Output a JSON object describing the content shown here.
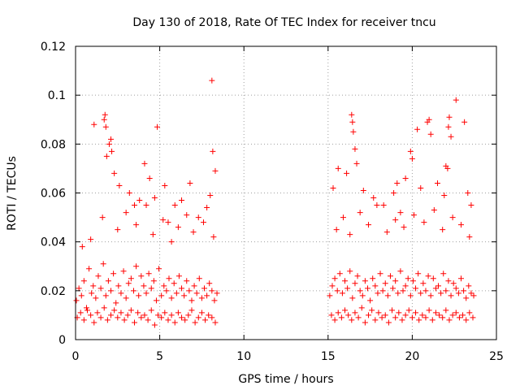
{
  "chart_data": {
    "type": "scatter",
    "title": "Day 130 of 2018, Rate Of TEC Index for receiver tncu",
    "xlabel": "GPS time / hours",
    "ylabel": "ROTI / TECUs",
    "xlim": [
      0,
      25
    ],
    "ylim": [
      0,
      0.12
    ],
    "x_ticks": [
      "0",
      "5",
      "10",
      "15",
      "20",
      "25"
    ],
    "y_ticks": [
      "0",
      "0.02",
      "0.04",
      "0.06",
      "0.08",
      "0.1",
      "0.12"
    ],
    "grid": true,
    "marker": "+",
    "marker_color": "#ff0000",
    "series": [
      {
        "name": "ROTI",
        "x": [
          0.05,
          0.2,
          0.35,
          0.5,
          0.65,
          0.8,
          0.95,
          1.05,
          1.2,
          1.35,
          1.5,
          1.65,
          1.8,
          1.95,
          2.1,
          2.25,
          2.4,
          2.55,
          2.7,
          2.85,
          3.0,
          3.15,
          3.3,
          3.45,
          3.6,
          3.75,
          3.9,
          4.05,
          4.2,
          4.35,
          4.5,
          4.65,
          4.8,
          4.95,
          5.1,
          5.25,
          5.4,
          5.55,
          5.7,
          5.85,
          6.0,
          6.15,
          6.3,
          6.45,
          6.6,
          6.75,
          6.9,
          7.05,
          7.2,
          7.35,
          7.5,
          7.65,
          7.8,
          7.95,
          8.1,
          8.25,
          8.4,
          0.1,
          0.3,
          0.5,
          0.7,
          0.9,
          1.1,
          1.3,
          1.5,
          1.7,
          1.9,
          2.1,
          2.3,
          2.5,
          2.7,
          2.9,
          3.1,
          3.3,
          3.5,
          3.7,
          3.9,
          4.1,
          4.3,
          4.5,
          4.7,
          4.9,
          5.1,
          5.3,
          5.5,
          5.7,
          5.9,
          6.1,
          6.3,
          6.5,
          6.7,
          6.9,
          7.1,
          7.3,
          7.5,
          7.7,
          7.9,
          8.1,
          8.3,
          1.1,
          1.7,
          1.75,
          1.8,
          1.85,
          2.0,
          2.1,
          2.15,
          2.3,
          2.6,
          3.2,
          3.5,
          3.8,
          4.1,
          4.4,
          4.7,
          4.85,
          5.3,
          5.5,
          5.9,
          6.3,
          6.8,
          7.3,
          7.8,
          8.0,
          8.1,
          8.15,
          8.3,
          0.4,
          0.9,
          1.6,
          2.5,
          3.0,
          3.6,
          4.2,
          4.6,
          5.2,
          5.7,
          6.1,
          6.6,
          7.0,
          7.6,
          8.2,
          15.1,
          15.25,
          15.4,
          15.55,
          15.7,
          15.85,
          16.0,
          16.15,
          16.3,
          16.45,
          16.6,
          16.75,
          16.9,
          17.05,
          17.2,
          17.35,
          17.5,
          17.65,
          17.8,
          17.95,
          18.1,
          18.25,
          18.4,
          18.55,
          18.7,
          18.85,
          19.0,
          19.15,
          19.3,
          19.45,
          19.6,
          19.75,
          19.9,
          20.05,
          20.2,
          20.35,
          20.5,
          20.65,
          20.8,
          20.95,
          21.1,
          21.25,
          21.4,
          21.55,
          21.7,
          21.85,
          22.0,
          22.15,
          22.3,
          22.45,
          22.6,
          22.75,
          22.9,
          23.05,
          23.2,
          23.35,
          23.5,
          23.65,
          15.2,
          15.4,
          15.6,
          15.8,
          16.0,
          16.2,
          16.4,
          16.6,
          16.8,
          17.0,
          17.2,
          17.4,
          17.6,
          17.8,
          18.0,
          18.2,
          18.4,
          18.6,
          18.8,
          19.0,
          19.2,
          19.4,
          19.6,
          19.8,
          20.0,
          20.2,
          20.4,
          20.6,
          20.8,
          21.0,
          21.2,
          21.4,
          21.6,
          21.8,
          22.0,
          22.2,
          22.4,
          22.6,
          22.8,
          23.0,
          23.2,
          23.4,
          23.6,
          15.3,
          15.6,
          16.1,
          16.4,
          16.45,
          16.5,
          16.6,
          16.7,
          17.1,
          17.7,
          18.3,
          18.9,
          19.1,
          19.3,
          19.6,
          19.9,
          20.0,
          20.3,
          20.5,
          20.9,
          21.0,
          21.1,
          21.5,
          21.9,
          22.0,
          22.1,
          22.15,
          22.2,
          22.3,
          22.6,
          23.1,
          23.3,
          23.5,
          15.5,
          15.9,
          16.3,
          16.9,
          17.4,
          17.9,
          18.5,
          19.0,
          19.5,
          20.1,
          20.7,
          21.3,
          21.8,
          22.4,
          22.9,
          23.4
        ],
        "y": [
          0.016,
          0.021,
          0.018,
          0.024,
          0.013,
          0.029,
          0.019,
          0.022,
          0.017,
          0.026,
          0.021,
          0.031,
          0.018,
          0.024,
          0.02,
          0.027,
          0.015,
          0.022,
          0.019,
          0.028,
          0.017,
          0.023,
          0.025,
          0.02,
          0.03,
          0.018,
          0.026,
          0.022,
          0.019,
          0.027,
          0.021,
          0.024,
          0.016,
          0.029,
          0.018,
          0.022,
          0.02,
          0.025,
          0.017,
          0.023,
          0.019,
          0.026,
          0.021,
          0.018,
          0.024,
          0.02,
          0.016,
          0.022,
          0.019,
          0.025,
          0.017,
          0.021,
          0.018,
          0.023,
          0.02,
          0.016,
          0.019,
          0.009,
          0.011,
          0.008,
          0.012,
          0.01,
          0.007,
          0.011,
          0.009,
          0.013,
          0.008,
          0.01,
          0.012,
          0.009,
          0.011,
          0.008,
          0.01,
          0.012,
          0.007,
          0.011,
          0.009,
          0.01,
          0.008,
          0.012,
          0.006,
          0.01,
          0.009,
          0.011,
          0.008,
          0.01,
          0.007,
          0.011,
          0.009,
          0.008,
          0.01,
          0.012,
          0.007,
          0.009,
          0.011,
          0.008,
          0.01,
          0.009,
          0.007,
          0.088,
          0.09,
          0.092,
          0.087,
          0.075,
          0.08,
          0.082,
          0.077,
          0.068,
          0.063,
          0.06,
          0.055,
          0.057,
          0.072,
          0.066,
          0.058,
          0.087,
          0.063,
          0.048,
          0.055,
          0.057,
          0.064,
          0.05,
          0.054,
          0.059,
          0.106,
          0.077,
          0.069,
          0.038,
          0.041,
          0.05,
          0.045,
          0.052,
          0.047,
          0.055,
          0.043,
          0.049,
          0.04,
          0.046,
          0.051,
          0.044,
          0.048,
          0.042,
          0.018,
          0.022,
          0.025,
          0.02,
          0.027,
          0.019,
          0.024,
          0.021,
          0.028,
          0.017,
          0.023,
          0.026,
          0.02,
          0.018,
          0.024,
          0.021,
          0.016,
          0.025,
          0.022,
          0.019,
          0.027,
          0.02,
          0.023,
          0.018,
          0.026,
          0.021,
          0.024,
          0.019,
          0.028,
          0.02,
          0.022,
          0.025,
          0.018,
          0.024,
          0.021,
          0.027,
          0.019,
          0.023,
          0.02,
          0.026,
          0.018,
          0.025,
          0.021,
          0.022,
          0.019,
          0.027,
          0.02,
          0.024,
          0.018,
          0.023,
          0.021,
          0.019,
          0.025,
          0.02,
          0.017,
          0.022,
          0.019,
          0.018,
          0.01,
          0.008,
          0.011,
          0.009,
          0.012,
          0.01,
          0.008,
          0.011,
          0.009,
          0.013,
          0.007,
          0.01,
          0.012,
          0.008,
          0.011,
          0.009,
          0.01,
          0.007,
          0.012,
          0.009,
          0.011,
          0.008,
          0.01,
          0.012,
          0.009,
          0.011,
          0.008,
          0.01,
          0.009,
          0.012,
          0.008,
          0.011,
          0.01,
          0.009,
          0.012,
          0.008,
          0.01,
          0.011,
          0.009,
          0.01,
          0.008,
          0.011,
          0.009,
          0.062,
          0.07,
          0.068,
          0.092,
          0.089,
          0.085,
          0.078,
          0.072,
          0.061,
          0.058,
          0.055,
          0.06,
          0.064,
          0.052,
          0.066,
          0.077,
          0.074,
          0.086,
          0.062,
          0.089,
          0.09,
          0.084,
          0.064,
          0.059,
          0.071,
          0.07,
          0.087,
          0.091,
          0.083,
          0.098,
          0.089,
          0.06,
          0.055,
          0.045,
          0.05,
          0.043,
          0.052,
          0.047,
          0.055,
          0.044,
          0.049,
          0.046,
          0.051,
          0.048,
          0.053,
          0.045,
          0.05,
          0.047,
          0.042
        ]
      }
    ]
  }
}
